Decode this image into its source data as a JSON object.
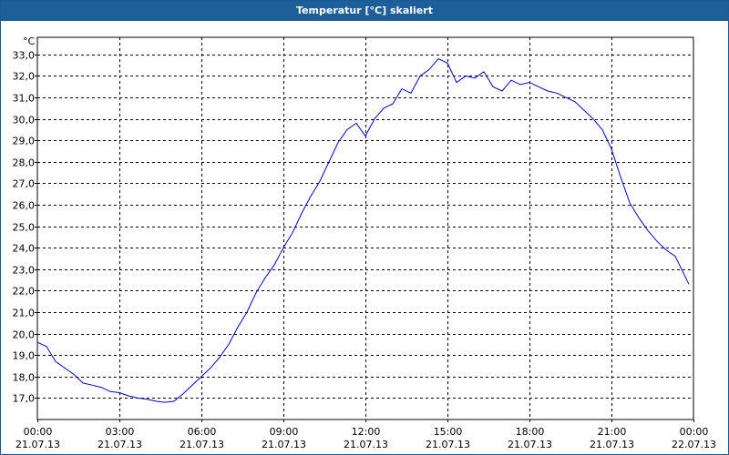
{
  "window": {
    "title": "Temperatur [°C] skaliert"
  },
  "colors": {
    "titlebar": "#1f5f99",
    "line": "#0000cc",
    "grid": "#000000",
    "background": "#ffffff"
  },
  "chart_data": {
    "type": "line",
    "title": "Temperatur [°C] skaliert",
    "ylabel": "°C",
    "ylim": [
      16.0,
      33.8
    ],
    "grid": true,
    "y_ticks": [
      "17,0",
      "18,0",
      "19,0",
      "20,0",
      "21,0",
      "22,0",
      "23,0",
      "24,0",
      "25,0",
      "26,0",
      "27,0",
      "28,0",
      "29,0",
      "30,0",
      "31,0",
      "32,0",
      "33,0"
    ],
    "x_ticks": [
      {
        "time": "00:00",
        "date": "21.07.13"
      },
      {
        "time": "03:00",
        "date": "21.07.13"
      },
      {
        "time": "06:00",
        "date": "21.07.13"
      },
      {
        "time": "09:00",
        "date": "21.07.13"
      },
      {
        "time": "12:00",
        "date": "21.07.13"
      },
      {
        "time": "15:00",
        "date": "21.07.13"
      },
      {
        "time": "18:00",
        "date": "21.07.13"
      },
      {
        "time": "21:00",
        "date": "21.07.13"
      },
      {
        "time": "00:00",
        "date": "22.07.13"
      }
    ],
    "series": [
      {
        "x": [
          "00:00",
          "00:20",
          "00:40",
          "01:00",
          "01:20",
          "01:40",
          "02:00",
          "02:20",
          "02:40",
          "03:00",
          "03:20",
          "03:40",
          "04:00",
          "04:20",
          "04:40",
          "05:00",
          "05:20",
          "05:40",
          "06:00",
          "06:20",
          "06:40",
          "07:00",
          "07:20",
          "07:40",
          "08:00",
          "08:20",
          "08:40",
          "09:00",
          "09:20",
          "09:40",
          "10:00",
          "10:20",
          "10:40",
          "11:00",
          "11:20",
          "11:40",
          "12:00",
          "12:20",
          "12:40",
          "13:00",
          "13:20",
          "13:40",
          "14:00",
          "14:20",
          "14:40",
          "15:00",
          "15:20",
          "15:40",
          "16:00",
          "16:20",
          "16:40",
          "17:00",
          "17:20",
          "17:40",
          "18:00",
          "18:20",
          "18:40",
          "19:00",
          "19:20",
          "19:40",
          "20:00",
          "20:20",
          "20:40",
          "21:00",
          "21:20",
          "21:40",
          "22:00",
          "22:20",
          "22:40",
          "23:00",
          "23:20",
          "23:50"
        ],
        "values": [
          19.6,
          19.4,
          18.7,
          18.4,
          18.1,
          17.7,
          17.6,
          17.5,
          17.3,
          17.25,
          17.1,
          17.0,
          16.95,
          16.85,
          16.8,
          16.85,
          17.2,
          17.6,
          18.0,
          18.4,
          18.9,
          19.5,
          20.3,
          21.0,
          21.9,
          22.6,
          23.2,
          24.0,
          24.7,
          25.6,
          26.4,
          27.1,
          28.0,
          28.9,
          29.5,
          29.8,
          29.2,
          30.0,
          30.5,
          30.7,
          31.4,
          31.2,
          32.0,
          32.3,
          32.8,
          32.6,
          31.7,
          32.0,
          31.9,
          32.2,
          31.5,
          31.3,
          31.8,
          31.6,
          31.7,
          31.5,
          31.3,
          31.2,
          31.0,
          30.8,
          30.4,
          30.0,
          29.5,
          28.6,
          27.3,
          26.1,
          25.4,
          24.8,
          24.3,
          23.9,
          23.6,
          22.3
        ]
      }
    ]
  }
}
